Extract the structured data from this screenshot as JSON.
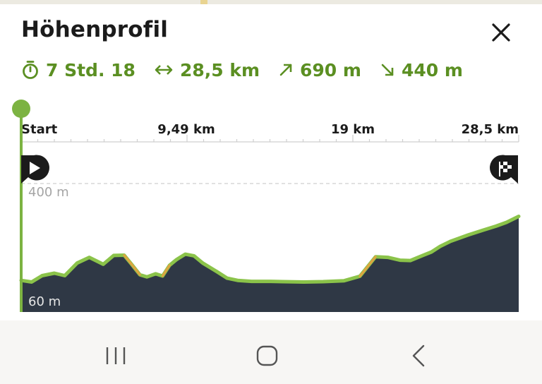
{
  "sheet": {
    "title": "Höhenprofil",
    "close_icon": "close-icon"
  },
  "stats": {
    "duration": "7 Std. 18",
    "distance": "28,5 km",
    "ascent": "690 m",
    "descent": "440 m",
    "icons": [
      "timer-icon",
      "distance-arrows-icon",
      "ascent-arrow-icon",
      "descent-arrow-icon"
    ],
    "color": "#5b8f22"
  },
  "profile": {
    "distance_ticks": [
      "Start",
      "9,49 km",
      "19 km",
      "28,5 km"
    ],
    "elevation_labels": [
      "400 m",
      "60 m"
    ],
    "start_icon": "play-icon",
    "finish_icon": "finish-flag-icon"
  },
  "chart_data": {
    "type": "area",
    "title": "",
    "xlabel": "",
    "ylabel": "",
    "x_unit": "km",
    "y_unit": "m",
    "xlim": [
      0,
      28.5
    ],
    "ylim": [
      60,
      400
    ],
    "x_tick_values": [
      0,
      9.49,
      19,
      28.5
    ],
    "x": [
      0,
      0.6,
      1.2,
      1.9,
      2.5,
      3.2,
      3.9,
      4.7,
      5.3,
      5.9,
      6.3,
      6.8,
      7.2,
      7.7,
      8.1,
      8.5,
      8.9,
      9.4,
      9.9,
      10.4,
      11.2,
      11.8,
      12.4,
      13.2,
      14.3,
      15.0,
      16.2,
      17.3,
      18.5,
      19.4,
      20.3,
      21.0,
      21.7,
      22.3,
      23.0,
      23.5,
      24.0,
      24.6,
      25.6,
      26.5,
      27.2,
      27.8,
      28.5
    ],
    "series": [
      {
        "name": "",
        "y": [
          93,
          88,
          108,
          116,
          108,
          148,
          166,
          144,
          172,
          173,
          146,
          111,
          104,
          114,
          107,
          141,
          159,
          176,
          171,
          148,
          121,
          100,
          93,
          90,
          90,
          89,
          88,
          89,
          92,
          106,
          168,
          166,
          157,
          156,
          172,
          183,
          201,
          217,
          237,
          253,
          265,
          277,
          296
        ]
      }
    ],
    "grid": "dashed horizontal lines at 400 m and 60 m",
    "colors": {
      "fill": "#2f3845",
      "line": "#8bc34a",
      "steep_segments": "#e0a340",
      "axis": "#8bc34a"
    }
  },
  "nav_bar": {
    "icons": [
      "recent-apps-icon",
      "home-icon",
      "back-icon"
    ]
  }
}
